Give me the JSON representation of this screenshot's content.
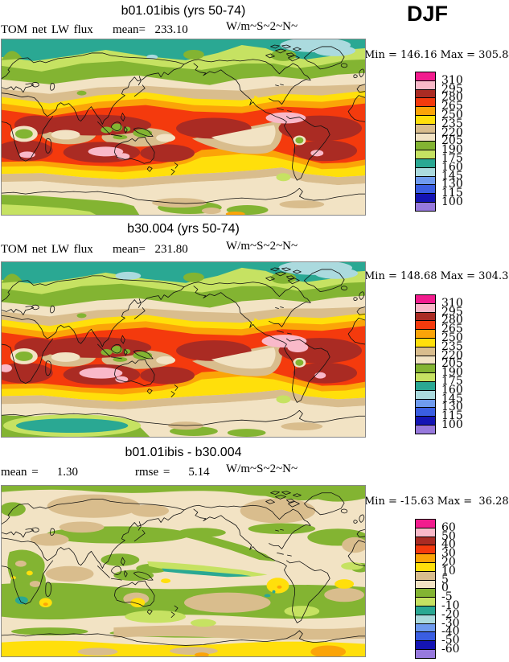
{
  "season": "DJF",
  "panels": [
    {
      "title": "b01.01ibis (yrs 50-74)",
      "var_label": "TOM net LW flux",
      "stat1": "mean=  233.10",
      "units": "W/m~S~2~N~",
      "minmax": "Min = 146.16 Max = 305.84"
    },
    {
      "title": "b30.004 (yrs 50-74)",
      "var_label": "TOM net LW flux",
      "stat1": "mean=  231.80",
      "units": "W/m~S~2~N~",
      "minmax": "Min = 148.68 Max = 304.31"
    },
    {
      "title": "b01.01ibis - b30.004",
      "stat1": "mean =    1.30",
      "stat2": "rmse =    5.14",
      "units": "W/m~S~2~N~",
      "minmax": "Min = -15.63 Max =  36.28"
    }
  ],
  "colorbar": {
    "colors_top_to_bottom": [
      "#f21c8e",
      "#f9b9c9",
      "#aa2b23",
      "#f43a0d",
      "#fba408",
      "#ffdf0b",
      "#d9bd8d",
      "#f2e3c4",
      "#83b432",
      "#c6e262",
      "#2aa893",
      "#abdade",
      "#6f9bef",
      "#3a5ee2",
      "#1414b4",
      "#9779dd"
    ],
    "labels_flux": [
      "310",
      "295",
      "280",
      "265",
      "250",
      "235",
      "220",
      "205",
      "190",
      "175",
      "160",
      "145",
      "130",
      "115",
      "100"
    ],
    "labels_diff": [
      "60",
      "50",
      "40",
      "30",
      "20",
      "10",
      "5",
      "0",
      "-5",
      "-10",
      "-20",
      "-30",
      "-40",
      "-50",
      "-60"
    ]
  },
  "chart_data": {
    "type": "heatmap",
    "subtype": "filled-contour-global-maps",
    "season": "DJF",
    "variable": "TOM net LW flux",
    "units": "W/m^2",
    "panels": [
      {
        "name": "b01.01ibis",
        "years": "50-74",
        "mean": 233.1,
        "min": 146.16,
        "max": 305.84,
        "levels": [
          100,
          115,
          130,
          145,
          160,
          175,
          190,
          205,
          220,
          235,
          250,
          265,
          280,
          295,
          310
        ]
      },
      {
        "name": "b30.004",
        "years": "50-74",
        "mean": 231.8,
        "min": 148.68,
        "max": 304.31,
        "levels": [
          100,
          115,
          130,
          145,
          160,
          175,
          190,
          205,
          220,
          235,
          250,
          265,
          280,
          295,
          310
        ]
      },
      {
        "name": "b01.01ibis - b30.004",
        "mean": 1.3,
        "rmse": 5.14,
        "min": -15.63,
        "max": 36.28,
        "levels": [
          -60,
          -50,
          -40,
          -30,
          -20,
          -10,
          -5,
          0,
          5,
          10,
          20,
          30,
          40,
          50,
          60
        ]
      }
    ]
  }
}
